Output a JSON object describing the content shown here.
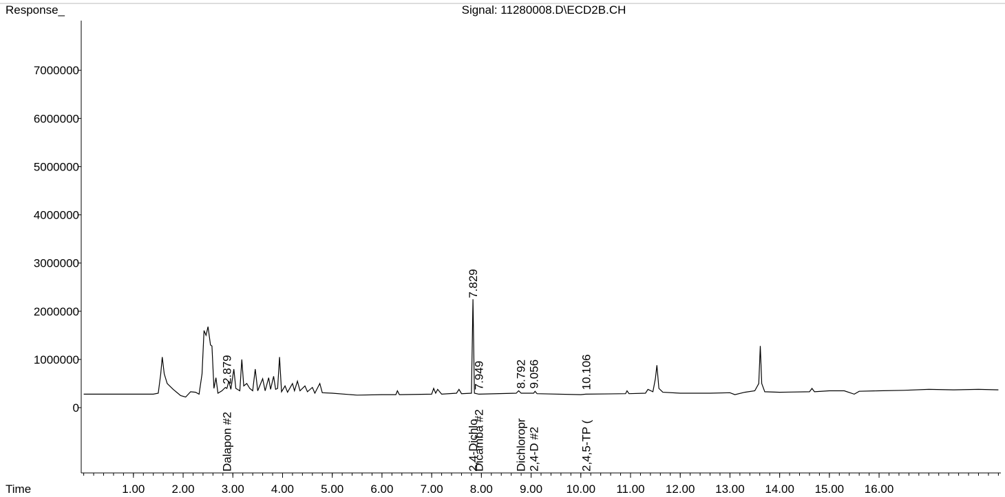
{
  "chart_data": {
    "type": "line",
    "title": "Signal: 11280008.D\\ECD2B.CH",
    "y_label": "Response_",
    "x_label": "Time",
    "color": "#000000",
    "xlim": [
      -0.05,
      18.45
    ],
    "ylim": [
      -1355000,
      8030000
    ],
    "xticks": [
      {
        "value": 1,
        "label": "1.00"
      },
      {
        "value": 2,
        "label": "2.00"
      },
      {
        "value": 3,
        "label": "3.00"
      },
      {
        "value": 4,
        "label": "4.00"
      },
      {
        "value": 5,
        "label": "5.00"
      },
      {
        "value": 6,
        "label": "6.00"
      },
      {
        "value": 7,
        "label": "7.00"
      },
      {
        "value": 8,
        "label": "8.00"
      },
      {
        "value": 9,
        "label": "9.00"
      },
      {
        "value": 10,
        "label": "10.00"
      },
      {
        "value": 11,
        "label": "11.00"
      },
      {
        "value": 12,
        "label": "12.00"
      },
      {
        "value": 13,
        "label": "13.00"
      },
      {
        "value": 14,
        "label": "14.00"
      },
      {
        "value": 15,
        "label": "15.00"
      },
      {
        "value": 16,
        "label": "16.00"
      }
    ],
    "yticks": [
      0,
      1000000,
      2000000,
      3000000,
      4000000,
      5000000,
      6000000,
      7000000
    ],
    "x": [
      0.0,
      1.4,
      1.5,
      1.55,
      1.58,
      1.62,
      1.68,
      1.8,
      1.95,
      2.05,
      2.15,
      2.25,
      2.32,
      2.38,
      2.42,
      2.46,
      2.5,
      2.55,
      2.58,
      2.62,
      2.66,
      2.7,
      2.78,
      2.85,
      2.88,
      2.92,
      2.96,
      3.02,
      3.06,
      3.14,
      3.18,
      3.22,
      3.28,
      3.34,
      3.4,
      3.45,
      3.5,
      3.6,
      3.65,
      3.72,
      3.76,
      3.82,
      3.86,
      3.9,
      3.94,
      3.98,
      4.05,
      4.1,
      4.2,
      4.24,
      4.3,
      4.35,
      4.45,
      4.5,
      4.6,
      4.65,
      4.75,
      4.8,
      5.0,
      5.5,
      6.0,
      6.28,
      6.31,
      6.35,
      7.0,
      7.04,
      7.08,
      7.12,
      7.2,
      7.5,
      7.55,
      7.6,
      7.8,
      7.83,
      7.86,
      7.95,
      8.7,
      8.75,
      8.8,
      9.05,
      9.08,
      9.12,
      10.0,
      10.1,
      10.9,
      10.93,
      10.97,
      11.3,
      11.35,
      11.45,
      11.5,
      11.53,
      11.57,
      11.65,
      12.0,
      12.6,
      13.0,
      13.1,
      13.3,
      13.5,
      13.58,
      13.61,
      13.64,
      13.7,
      14.0,
      14.6,
      14.65,
      14.7,
      15.0,
      15.3,
      15.5,
      15.6,
      16.0,
      16.5,
      17.0,
      17.5,
      18.0,
      18.4
    ],
    "values": [
      280000,
      280000,
      300000,
      700000,
      1050000,
      700000,
      500000,
      380000,
      250000,
      220000,
      330000,
      320000,
      280000,
      700000,
      1600000,
      1500000,
      1680000,
      1300000,
      1280000,
      400000,
      620000,
      300000,
      350000,
      420000,
      400000,
      550000,
      380000,
      800000,
      400000,
      350000,
      1000000,
      450000,
      500000,
      400000,
      350000,
      800000,
      350000,
      600000,
      350000,
      620000,
      380000,
      650000,
      380000,
      400000,
      1050000,
      330000,
      450000,
      320000,
      500000,
      350000,
      550000,
      350000,
      450000,
      330000,
      420000,
      300000,
      500000,
      310000,
      300000,
      260000,
      270000,
      270000,
      350000,
      270000,
      280000,
      400000,
      300000,
      380000,
      280000,
      300000,
      380000,
      290000,
      300000,
      2250000,
      300000,
      280000,
      300000,
      350000,
      300000,
      300000,
      340000,
      290000,
      270000,
      280000,
      290000,
      350000,
      290000,
      300000,
      380000,
      330000,
      600000,
      880000,
      400000,
      320000,
      300000,
      300000,
      310000,
      270000,
      320000,
      350000,
      500000,
      1280000,
      500000,
      330000,
      320000,
      330000,
      400000,
      330000,
      350000,
      350000,
      280000,
      340000,
      350000,
      360000,
      380000,
      370000,
      380000,
      370000
    ],
    "peaks": [
      {
        "x": 2.879,
        "label": "Dalapon #2"
      },
      {
        "x": 7.829,
        "label": "2,4-Dichlo"
      },
      {
        "x": 7.949,
        "label": "Dicamba #2"
      },
      {
        "x": 8.792,
        "label": "Dichloropr"
      },
      {
        "x": 9.056,
        "label": "2,4-D #2"
      },
      {
        "x": 10.106,
        "label": "2,4,5-TP ("
      }
    ]
  }
}
